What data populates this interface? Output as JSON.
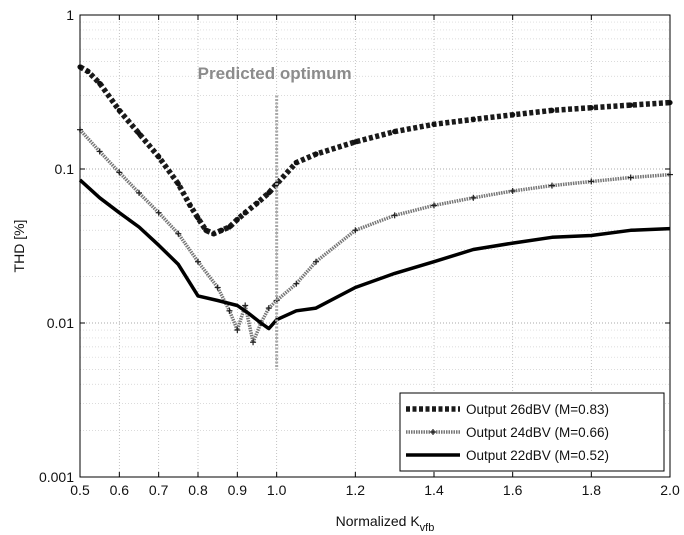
{
  "chart_data": {
    "type": "line",
    "xlabel_main": "Normalized K",
    "xlabel_sub": "vfb",
    "ylabel": "THD [%]",
    "xscale": "linear",
    "yscale": "log",
    "xlim": [
      0.5,
      2.0
    ],
    "ylim": [
      0.001,
      1
    ],
    "grid": true,
    "legend_position": "bottom-right",
    "x_ticks": [
      0.5,
      0.6,
      0.7,
      0.8,
      0.9,
      1.0,
      1.2,
      1.4,
      1.6,
      1.8,
      2.0
    ],
    "x_tick_labels": [
      "0.5",
      "0.6",
      "0.7",
      "0.8",
      "0.9",
      "1.0",
      "1.2",
      "1.4",
      "1.6",
      "1.8",
      "2.0"
    ],
    "y_ticks": [
      0.001,
      0.01,
      0.1,
      1
    ],
    "y_tick_labels": [
      "0.001",
      "0.01",
      "0.1",
      "1"
    ],
    "annotation": {
      "text": "Predicted optimum",
      "x": 1.0,
      "y_range": [
        0.005,
        0.3
      ]
    },
    "series": [
      {
        "name": "Output 26dBV (M=0.83)",
        "style": "dotted-heavy",
        "color": "#1a1a1a",
        "x": [
          0.5,
          0.52,
          0.55,
          0.6,
          0.65,
          0.7,
          0.75,
          0.78,
          0.8,
          0.82,
          0.84,
          0.86,
          0.88,
          0.9,
          0.92,
          0.95,
          0.98,
          1.0,
          1.05,
          1.1,
          1.2,
          1.3,
          1.4,
          1.5,
          1.6,
          1.7,
          1.8,
          1.9,
          2.0
        ],
        "y": [
          0.46,
          0.43,
          0.36,
          0.24,
          0.17,
          0.12,
          0.08,
          0.058,
          0.048,
          0.04,
          0.038,
          0.04,
          0.042,
          0.047,
          0.052,
          0.06,
          0.07,
          0.08,
          0.11,
          0.125,
          0.15,
          0.175,
          0.195,
          0.21,
          0.225,
          0.24,
          0.25,
          0.26,
          0.27
        ]
      },
      {
        "name": "Output 24dBV (M=0.66)",
        "style": "light-plus",
        "color": "#777777",
        "x": [
          0.5,
          0.55,
          0.6,
          0.65,
          0.7,
          0.75,
          0.8,
          0.85,
          0.88,
          0.9,
          0.92,
          0.94,
          0.96,
          0.98,
          1.0,
          1.05,
          1.1,
          1.2,
          1.3,
          1.4,
          1.5,
          1.6,
          1.7,
          1.8,
          1.9,
          2.0
        ],
        "y": [
          0.18,
          0.13,
          0.095,
          0.07,
          0.052,
          0.038,
          0.025,
          0.017,
          0.012,
          0.009,
          0.013,
          0.0075,
          0.01,
          0.0125,
          0.014,
          0.018,
          0.025,
          0.04,
          0.05,
          0.058,
          0.065,
          0.072,
          0.078,
          0.083,
          0.088,
          0.092
        ]
      },
      {
        "name": "Output 22dBV (M=0.52)",
        "style": "solid-thick",
        "color": "#000000",
        "x": [
          0.5,
          0.55,
          0.6,
          0.65,
          0.7,
          0.75,
          0.8,
          0.85,
          0.9,
          0.93,
          0.96,
          0.98,
          1.0,
          1.05,
          1.1,
          1.2,
          1.3,
          1.4,
          1.5,
          1.6,
          1.7,
          1.8,
          1.9,
          2.0
        ],
        "y": [
          0.085,
          0.065,
          0.052,
          0.042,
          0.032,
          0.024,
          0.015,
          0.014,
          0.013,
          0.0115,
          0.01,
          0.0092,
          0.0105,
          0.012,
          0.0125,
          0.017,
          0.021,
          0.025,
          0.03,
          0.033,
          0.036,
          0.037,
          0.04,
          0.041
        ]
      }
    ]
  }
}
